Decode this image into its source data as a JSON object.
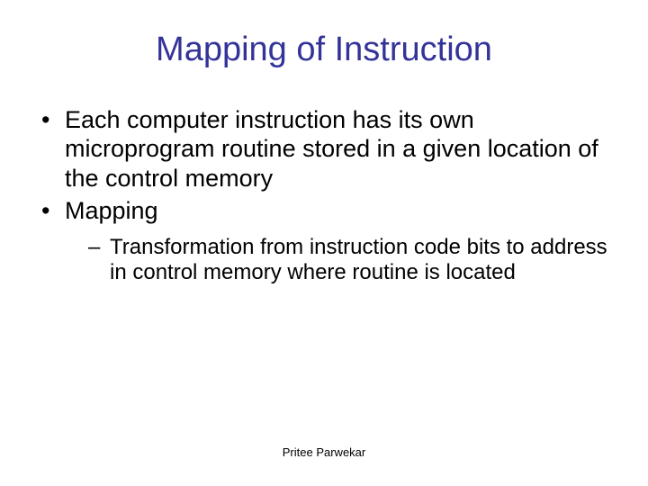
{
  "title": "Mapping of Instruction",
  "title_color": "#333399",
  "body_color": "#000000",
  "background_color": "#ffffff",
  "title_fontsize": 38,
  "body_fontsize": 27,
  "sub_fontsize": 24,
  "footer_fontsize": 13,
  "bullets": [
    {
      "text": "Each computer instruction has its own microprogram routine stored in a given location of the control memory"
    },
    {
      "text": "Mapping",
      "sub": [
        "Transformation from instruction code bits to address in control memory where routine is located"
      ]
    }
  ],
  "footer": "Pritee Parwekar"
}
